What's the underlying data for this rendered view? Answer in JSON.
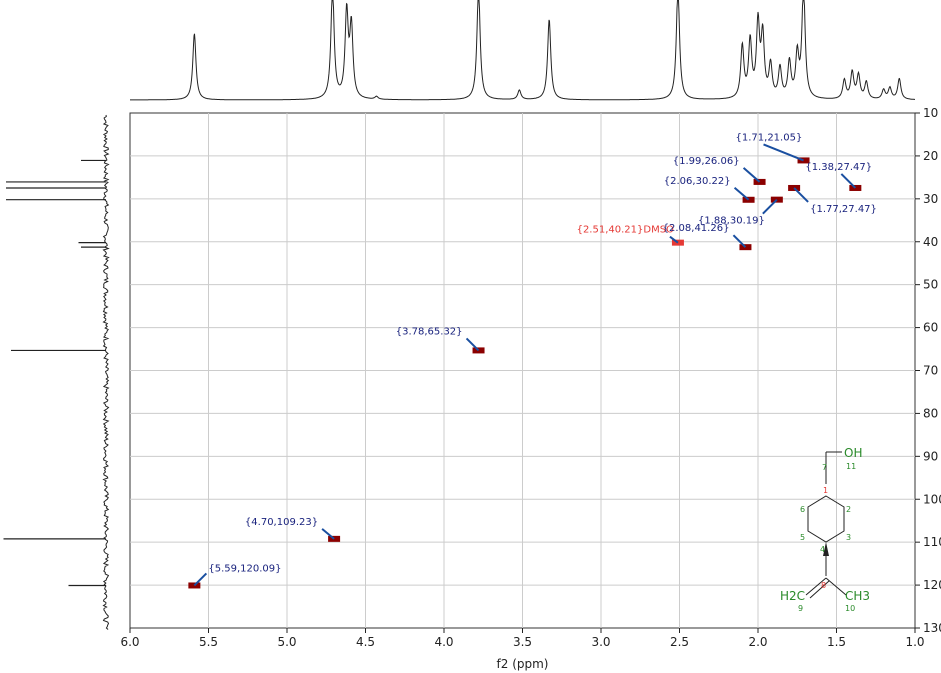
{
  "chart_data": {
    "type": "scatter",
    "title": "",
    "xlabel": "f2 (ppm)",
    "ylabel": "",
    "xlim": [
      6.0,
      1.0
    ],
    "ylim": [
      10,
      130
    ],
    "x_ticks": [
      "6.0",
      "5.5",
      "5.0",
      "4.5",
      "4.0",
      "3.5",
      "3.0",
      "2.5",
      "2.0",
      "1.5",
      "1.0"
    ],
    "y_ticks": [
      "10",
      "20",
      "30",
      "40",
      "50",
      "60",
      "70",
      "80",
      "90",
      "100",
      "110",
      "120",
      "130"
    ],
    "grid": true,
    "series": [
      {
        "points": [
          {
            "x": 1.71,
            "y": 21.05,
            "label": "{1.71,21.05}"
          },
          {
            "x": 1.99,
            "y": 26.06,
            "label": "{1.99,26.06}"
          },
          {
            "x": 1.38,
            "y": 27.47,
            "label": "{1.38,27.47}"
          },
          {
            "x": 2.06,
            "y": 30.22,
            "label": "{2.06,30.22}"
          },
          {
            "x": 1.77,
            "y": 27.47,
            "label": "{1.77,27.47}"
          },
          {
            "x": 1.88,
            "y": 30.19,
            "label": "{1.88,30.19}"
          },
          {
            "x": 2.51,
            "y": 40.21,
            "label": "{2.51,40.21}DMSO"
          },
          {
            "x": 2.08,
            "y": 41.26,
            "label": "{2.08,41.26}"
          },
          {
            "x": 3.78,
            "y": 65.32,
            "label": "{3.78,65.32}"
          },
          {
            "x": 4.7,
            "y": 109.23,
            "label": "{4.70,109.23}"
          },
          {
            "x": 5.59,
            "y": 120.09,
            "label": "{5.59,120.09}"
          }
        ]
      }
    ],
    "proton_peaks": [
      {
        "x": 5.59,
        "h": 0.7
      },
      {
        "x": 4.71,
        "h": 1.2
      },
      {
        "x": 4.62,
        "h": 0.9
      },
      {
        "x": 4.59,
        "h": 0.75
      },
      {
        "x": 4.43,
        "h": 0.03
      },
      {
        "x": 3.78,
        "h": 1.2
      },
      {
        "x": 3.52,
        "h": 0.1
      },
      {
        "x": 3.33,
        "h": 0.85
      },
      {
        "x": 2.51,
        "h": 1.2
      },
      {
        "x": 2.1,
        "h": 0.55
      },
      {
        "x": 2.05,
        "h": 0.6
      },
      {
        "x": 2.0,
        "h": 0.78
      },
      {
        "x": 1.97,
        "h": 0.65
      },
      {
        "x": 1.92,
        "h": 0.35
      },
      {
        "x": 1.86,
        "h": 0.32
      },
      {
        "x": 1.8,
        "h": 0.38
      },
      {
        "x": 1.75,
        "h": 0.45
      },
      {
        "x": 1.71,
        "h": 1.2
      },
      {
        "x": 1.45,
        "h": 0.2
      },
      {
        "x": 1.4,
        "h": 0.28
      },
      {
        "x": 1.36,
        "h": 0.25
      },
      {
        "x": 1.31,
        "h": 0.18
      },
      {
        "x": 1.2,
        "h": 0.1
      },
      {
        "x": 1.16,
        "h": 0.12
      },
      {
        "x": 1.1,
        "h": 0.22
      }
    ],
    "carbon_peaks": [
      {
        "y": 21.05,
        "h": 0.2
      },
      {
        "y": 26.06,
        "h": 0.8
      },
      {
        "y": 27.47,
        "h": 0.8
      },
      {
        "y": 30.2,
        "h": 0.8
      },
      {
        "y": 40.21,
        "h": 0.22
      },
      {
        "y": 41.26,
        "h": 0.2
      },
      {
        "y": 65.32,
        "h": 0.76
      },
      {
        "y": 109.23,
        "h": 0.82
      },
      {
        "y": 120.09,
        "h": 0.3
      }
    ]
  },
  "structure": {
    "oh_label": "OH",
    "h2c_label": "H2C",
    "ch3_label": "CH3",
    "atoms": [
      "1",
      "2",
      "3",
      "4",
      "5",
      "6",
      "7",
      "8",
      "9",
      "10",
      "11"
    ]
  },
  "colors": {
    "label_default": "#1a237e",
    "label_solvent": "#e53935",
    "marker": "#8b0000",
    "arrow": "#1a4fa0",
    "grid": "#cccccc",
    "axis": "#222222",
    "structure": "#2a8a2a",
    "structure_highlight": "#e53935"
  }
}
